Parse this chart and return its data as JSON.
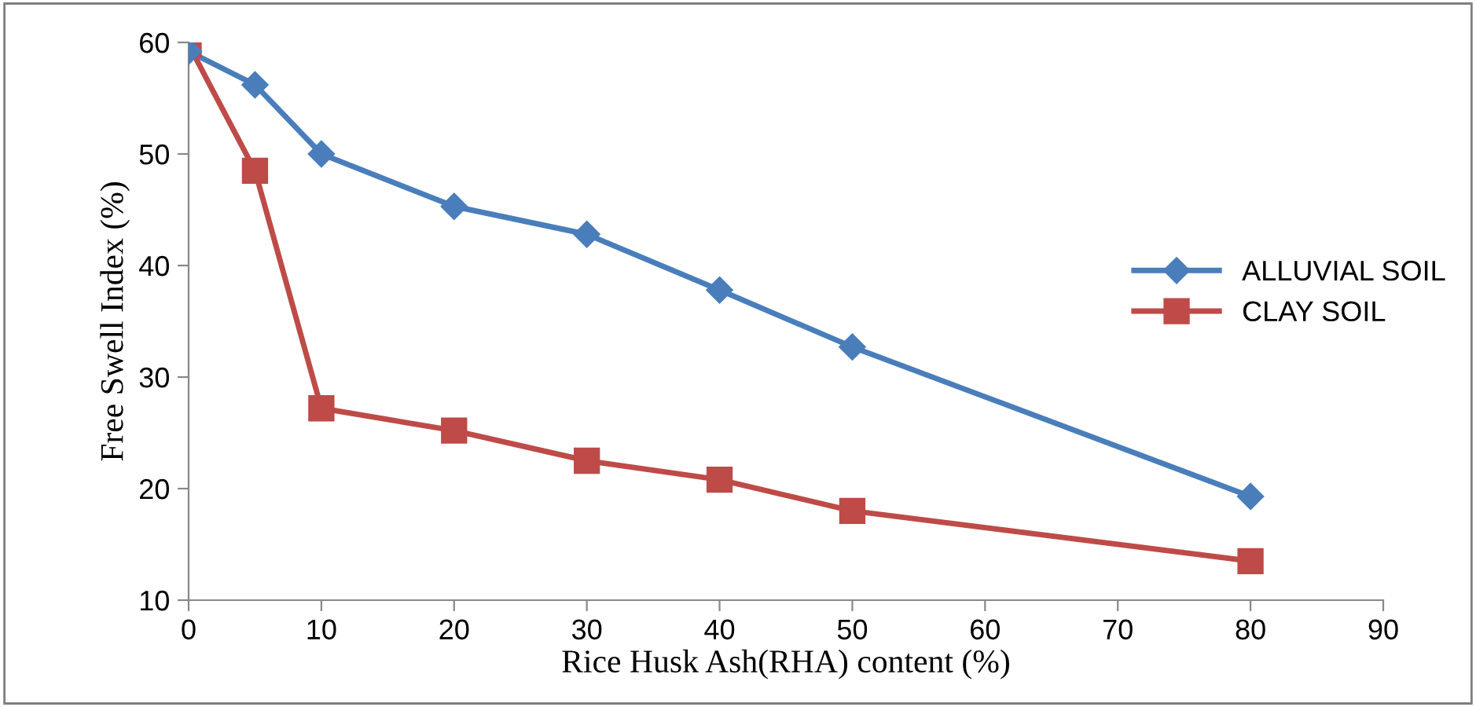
{
  "chart_data": {
    "type": "line",
    "xlabel": "Rice Husk Ash(RHA) content (%)",
    "ylabel": "Free Swell Index (%)",
    "x": [
      0,
      5,
      10,
      20,
      30,
      40,
      50,
      80
    ],
    "series": [
      {
        "name": "ALLUVIAL SOIL",
        "color": "#4a7ebb",
        "marker": "diamond",
        "values": [
          59.2,
          56.2,
          50.0,
          45.3,
          42.8,
          37.8,
          32.7,
          19.3
        ]
      },
      {
        "name": "CLAY SOIL",
        "color": "#be4b48",
        "marker": "square",
        "values": [
          59.8,
          48.5,
          27.2,
          25.2,
          22.5,
          20.8,
          18.0,
          13.5
        ]
      }
    ],
    "xlim": [
      0,
      90
    ],
    "xticks": [
      0,
      10,
      20,
      30,
      40,
      50,
      60,
      70,
      80,
      90
    ],
    "ylim": [
      10,
      60
    ],
    "yticks": [
      10,
      20,
      30,
      40,
      50,
      60
    ],
    "grid": false,
    "legend": "right",
    "line_style": "solid"
  }
}
